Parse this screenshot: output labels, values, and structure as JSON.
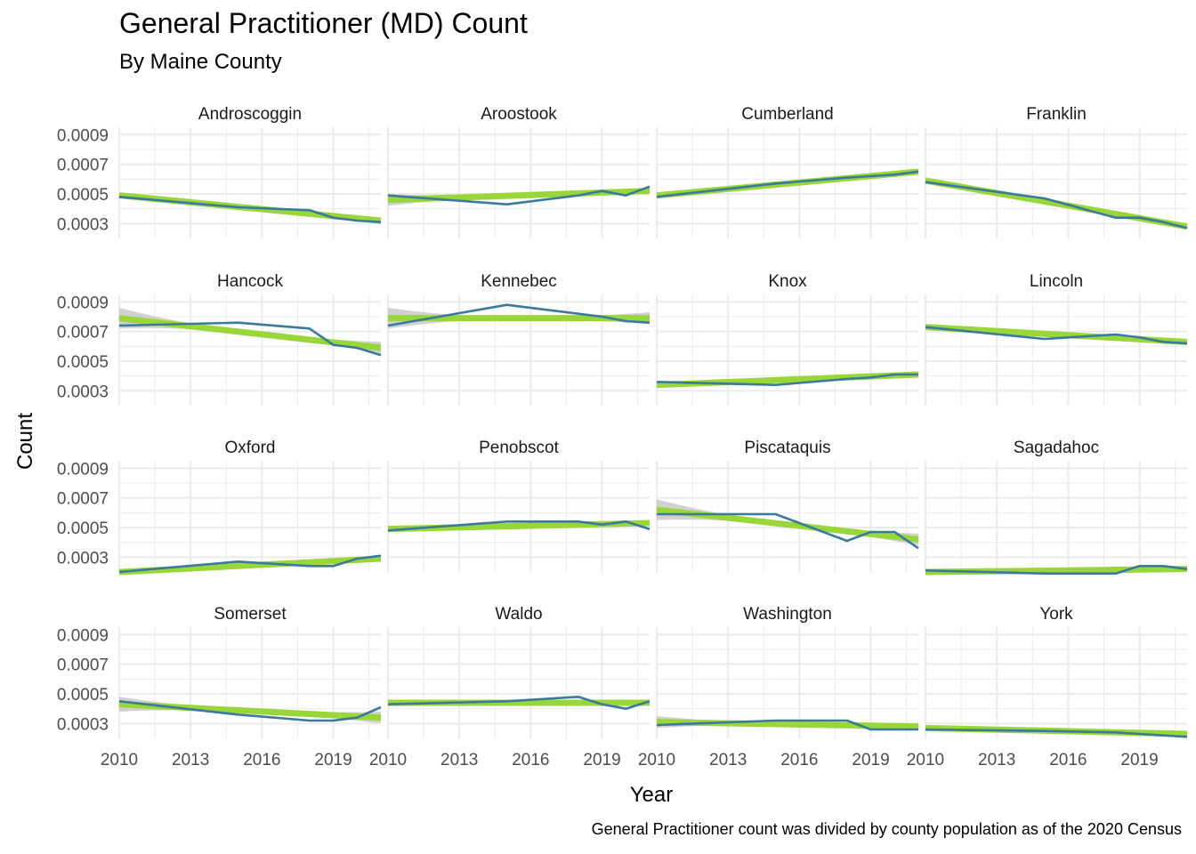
{
  "title": "General Practitioner (MD) Count",
  "subtitle": "By Maine County",
  "caption": "General Practitioner count was divided by county population as of the 2020 Census",
  "colors": {
    "line": "#3a7a9c",
    "trend": "#99d63a",
    "band": "#c9c9c9",
    "grid": "#ebebeb"
  },
  "chart_data": {
    "type": "line",
    "facets": "small-multiples",
    "xlabel": "Year",
    "ylabel": "Count",
    "xlim": [
      2010,
      2021
    ],
    "ylim": [
      0.0002,
      0.00095
    ],
    "xticks": [
      "2010",
      "2013",
      "2016",
      "2019"
    ],
    "yticks": [
      "0.0009",
      "0.0007",
      "0.0005",
      "0.0003"
    ],
    "legend": "none",
    "panels": [
      {
        "county": "Androscoggin",
        "x": [
          2010,
          2015,
          2018,
          2019,
          2020,
          2021
        ],
        "y": [
          0.00048,
          0.00041,
          0.00039,
          0.00034,
          0.00032,
          0.00031
        ],
        "trend": [
          0.00049,
          0.00032
        ],
        "band": [
          6e-06,
          6e-06
        ]
      },
      {
        "county": "Aroostook",
        "x": [
          2010,
          2015,
          2018,
          2019,
          2020,
          2021
        ],
        "y": [
          0.00049,
          0.00043,
          0.00049,
          0.00052,
          0.00049,
          0.00055
        ],
        "trend": [
          0.00046,
          0.00052
        ],
        "band": [
          4e-05,
          2e-05
        ]
      },
      {
        "county": "Cumberland",
        "x": [
          2010,
          2015,
          2018,
          2019,
          2020,
          2021
        ],
        "y": [
          0.00048,
          0.00057,
          0.00061,
          0.00062,
          0.00063,
          0.00065
        ],
        "trend": [
          0.00049,
          0.00065
        ],
        "band": [
          6e-06,
          6e-06
        ]
      },
      {
        "county": "Franklin",
        "x": [
          2010,
          2015,
          2018,
          2019,
          2020,
          2021
        ],
        "y": [
          0.00058,
          0.00047,
          0.00034,
          0.00034,
          0.00031,
          0.00027
        ],
        "trend": [
          0.00059,
          0.00028
        ],
        "band": [
          6e-06,
          6e-06
        ]
      },
      {
        "county": "Hancock",
        "x": [
          2010,
          2015,
          2018,
          2019,
          2020,
          2021
        ],
        "y": [
          0.00074,
          0.00076,
          0.00072,
          0.00061,
          0.00059,
          0.00054
        ],
        "trend": [
          0.00079,
          0.00059
        ],
        "band": [
          7e-05,
          4e-05
        ]
      },
      {
        "county": "Kennebec",
        "x": [
          2010,
          2015,
          2018,
          2019,
          2020,
          2021
        ],
        "y": [
          0.00074,
          0.00088,
          0.00082,
          0.0008,
          0.00077,
          0.00076
        ],
        "trend": [
          0.00079,
          0.00079
        ],
        "band": [
          7e-05,
          4e-05
        ]
      },
      {
        "county": "Knox",
        "x": [
          2010,
          2015,
          2018,
          2019,
          2020,
          2021
        ],
        "y": [
          0.00036,
          0.00034,
          0.00038,
          0.00039,
          0.00041,
          0.00041
        ],
        "trend": [
          0.00034,
          0.00041
        ],
        "band": [
          6e-06,
          6e-06
        ]
      },
      {
        "county": "Lincoln",
        "x": [
          2010,
          2015,
          2018,
          2019,
          2020,
          2021
        ],
        "y": [
          0.00073,
          0.00065,
          0.00068,
          0.00066,
          0.00063,
          0.00062
        ],
        "trend": [
          0.00073,
          0.00063
        ],
        "band": [
          6e-06,
          6e-06
        ]
      },
      {
        "county": "Oxford",
        "x": [
          2010,
          2015,
          2018,
          2019,
          2020,
          2021
        ],
        "y": [
          0.0002,
          0.00027,
          0.00024,
          0.00024,
          0.00029,
          0.00031
        ],
        "trend": [
          0.0002,
          0.00029
        ],
        "band": [
          1e-05,
          1e-05
        ]
      },
      {
        "county": "Penobscot",
        "x": [
          2010,
          2015,
          2018,
          2019,
          2020,
          2021
        ],
        "y": [
          0.00048,
          0.00054,
          0.00054,
          0.00052,
          0.00054,
          0.00049
        ],
        "trend": [
          0.00049,
          0.00053
        ],
        "band": [
          2e-05,
          2e-05
        ]
      },
      {
        "county": "Piscataquis",
        "x": [
          2010,
          2015,
          2018,
          2019,
          2020,
          2021
        ],
        "y": [
          0.00059,
          0.00059,
          0.00041,
          0.00047,
          0.00047,
          0.00036
        ],
        "trend": [
          0.00062,
          0.00042
        ],
        "band": [
          7e-05,
          4e-05
        ]
      },
      {
        "county": "Sagadahoc",
        "x": [
          2010,
          2015,
          2018,
          2019,
          2020,
          2021
        ],
        "y": [
          0.00021,
          0.00019,
          0.00019,
          0.00024,
          0.00024,
          0.00022
        ],
        "trend": [
          0.0002,
          0.00022
        ],
        "band": [
          1e-05,
          1e-05
        ]
      },
      {
        "county": "Somerset",
        "x": [
          2010,
          2015,
          2018,
          2019,
          2020,
          2021
        ],
        "y": [
          0.00045,
          0.00036,
          0.00032,
          0.00032,
          0.00034,
          0.00041
        ],
        "trend": [
          0.00043,
          0.00034
        ],
        "band": [
          5e-05,
          4e-05
        ]
      },
      {
        "county": "Waldo",
        "x": [
          2010,
          2015,
          2018,
          2019,
          2020,
          2021
        ],
        "y": [
          0.00043,
          0.00045,
          0.00048,
          0.00043,
          0.0004,
          0.00045
        ],
        "trend": [
          0.00044,
          0.00044
        ],
        "band": [
          2e-05,
          2e-05
        ]
      },
      {
        "county": "Washington",
        "x": [
          2010,
          2015,
          2018,
          2019,
          2020,
          2021
        ],
        "y": [
          0.00029,
          0.00032,
          0.00032,
          0.00026,
          0.00026,
          0.00026
        ],
        "trend": [
          0.00031,
          0.00028
        ],
        "band": [
          4e-05,
          2e-05
        ]
      },
      {
        "county": "York",
        "x": [
          2010,
          2015,
          2018,
          2019,
          2020,
          2021
        ],
        "y": [
          0.00026,
          0.00025,
          0.00024,
          0.00023,
          0.00022,
          0.00021
        ],
        "trend": [
          0.00027,
          0.00023
        ],
        "band": [
          1e-05,
          1e-05
        ]
      }
    ]
  }
}
